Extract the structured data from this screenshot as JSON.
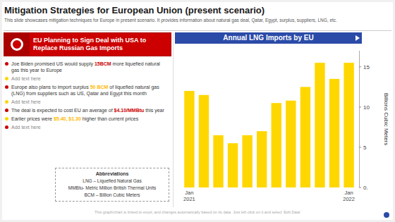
{
  "chart_data": {
    "type": "bar",
    "title": "Mitigation Strategies for European Union (present scenario)",
    "subtitle": "This slide showcases mitigation techniques for Europe in present scenario. It provides information about natural gas deal, Qatar, Egypt, surplus, suppliers, LNG, etc.",
    "categories": [
      "Jan\n2021",
      null,
      null,
      null,
      null,
      null,
      null,
      null,
      null,
      null,
      null,
      "Jan\n2022"
    ],
    "values": [
      12.0,
      11.5,
      6.5,
      5.5,
      6.5,
      7.0,
      10.5,
      10.8,
      12.5,
      15.5,
      13.5,
      15.5
    ],
    "color": "#FFD700",
    "ylabel": "Billions Cubic Meters",
    "ylim": [
      0,
      17
    ],
    "yticks": [
      {
        "value": 0,
        "label": "0."
      },
      5,
      10,
      15
    ],
    "grid": false,
    "annotations": [
      [
        "Annual LNG Imports by EU"
      ],
      [
        "EU Planning to Sign Deal with USA to",
        "Replace Russian Gas Imports"
      ],
      [
        "Joe Biden promised US would supply ",
        "15BCM",
        " more",
        "liquefied natural gas this year to Europe"
      ],
      [
        "Add text here"
      ],
      [
        "Europe also plans to import surplus ",
        "50 BCM",
        "of liquefied",
        "natural gas (LNG) from suppliers such as US, Qatar and",
        "Egypt this month"
      ],
      [
        "Add text here"
      ],
      [
        "The deal is expected to cost EU an average of",
        "$4.10/MMBtu",
        " this year"
      ],
      [
        "Earlier prices were ",
        "$5.40, $1.30",
        " higher than current prices"
      ],
      [
        "Add text here"
      ],
      [
        "Abbreviations",
        "LNG – Liquefied Natural Gas",
        "MMBtu- Metric Million British Thermal Units",
        "BCM – Billion Cubic Meters"
      ],
      [
        "This graph/chart is linked to excel, and changes automatically based on its data. Just left click on it and select 'Edit Data'"
      ]
    ]
  }
}
